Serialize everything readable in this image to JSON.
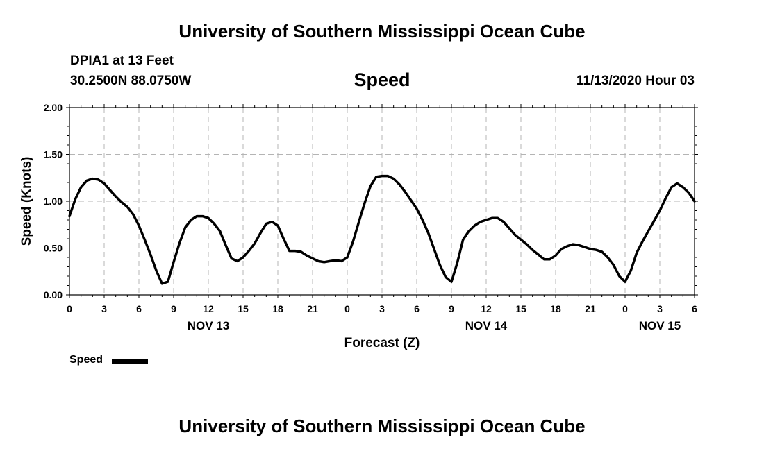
{
  "header": {
    "title": "University of Southern Mississippi Ocean Cube",
    "station": "DPIA1 at 13 Feet",
    "coordinates": "30.2500N 88.0750W",
    "chart_title": "Speed",
    "timestamp": "11/13/2020 Hour 03"
  },
  "footer": {
    "title": "University of Southern Mississippi Ocean Cube"
  },
  "legend": {
    "label": "Speed",
    "color": "#000000"
  },
  "chart_data": {
    "type": "line",
    "title": "Speed",
    "xlabel": "Forecast (Z)",
    "ylabel": "Speed (Knots)",
    "ylim": [
      0,
      2
    ],
    "xlim": [
      0,
      54
    ],
    "x_unit": "forecast hour",
    "y_ticks": [
      "0.00",
      "0.50",
      "1.00",
      "1.50",
      "2.00"
    ],
    "x_ticks": [
      {
        "x": 0,
        "label": "0"
      },
      {
        "x": 3,
        "label": "3"
      },
      {
        "x": 6,
        "label": "6"
      },
      {
        "x": 9,
        "label": "9"
      },
      {
        "x": 12,
        "label": "12"
      },
      {
        "x": 15,
        "label": "15"
      },
      {
        "x": 18,
        "label": "18"
      },
      {
        "x": 21,
        "label": "21"
      },
      {
        "x": 24,
        "label": "0"
      },
      {
        "x": 27,
        "label": "3"
      },
      {
        "x": 30,
        "label": "6"
      },
      {
        "x": 33,
        "label": "9"
      },
      {
        "x": 36,
        "label": "12"
      },
      {
        "x": 39,
        "label": "15"
      },
      {
        "x": 42,
        "label": "18"
      },
      {
        "x": 45,
        "label": "21"
      },
      {
        "x": 48,
        "label": "0"
      },
      {
        "x": 51,
        "label": "3"
      },
      {
        "x": 54,
        "label": "6"
      }
    ],
    "date_labels": [
      {
        "x": 12,
        "label": "NOV 13"
      },
      {
        "x": 36,
        "label": "NOV 14"
      },
      {
        "x": 51,
        "label": "NOV 15"
      }
    ],
    "grid": true,
    "series": [
      {
        "name": "Speed",
        "color": "#000000",
        "x": [
          0,
          0.5,
          1,
          1.5,
          2,
          2.5,
          3,
          3.5,
          4,
          4.5,
          5,
          5.5,
          6,
          6.5,
          7,
          7.5,
          8,
          8.5,
          9,
          9.5,
          10,
          10.5,
          11,
          11.5,
          12,
          12.5,
          13,
          13.5,
          14,
          14.5,
          15,
          15.5,
          16,
          16.5,
          17,
          17.5,
          18,
          18.5,
          19,
          19.5,
          20,
          20.5,
          21,
          21.5,
          22,
          22.5,
          23,
          23.5,
          24,
          24.5,
          25,
          25.5,
          26,
          26.5,
          27,
          27.5,
          28,
          28.5,
          29,
          29.5,
          30,
          30.5,
          31,
          31.5,
          32,
          32.5,
          33,
          33.5,
          34,
          34.5,
          35,
          35.5,
          36,
          36.5,
          37,
          37.5,
          38,
          38.5,
          39,
          39.5,
          40,
          40.5,
          41,
          41.5,
          42,
          42.5,
          43,
          43.5,
          44,
          44.5,
          45,
          45.5,
          46,
          46.5,
          47,
          47.5,
          48,
          48.5,
          49,
          49.5,
          50,
          50.5,
          51,
          51.5,
          52,
          52.5,
          53,
          53.5,
          54
        ],
        "values": [
          0.84,
          1.02,
          1.15,
          1.22,
          1.24,
          1.23,
          1.19,
          1.12,
          1.05,
          0.99,
          0.94,
          0.86,
          0.74,
          0.59,
          0.43,
          0.26,
          0.12,
          0.14,
          0.35,
          0.55,
          0.72,
          0.8,
          0.84,
          0.84,
          0.82,
          0.76,
          0.68,
          0.53,
          0.39,
          0.36,
          0.4,
          0.47,
          0.55,
          0.66,
          0.76,
          0.78,
          0.74,
          0.6,
          0.47,
          0.47,
          0.46,
          0.42,
          0.39,
          0.36,
          0.35,
          0.36,
          0.37,
          0.36,
          0.4,
          0.57,
          0.78,
          0.98,
          1.16,
          1.26,
          1.27,
          1.27,
          1.24,
          1.18,
          1.1,
          1.01,
          0.92,
          0.8,
          0.66,
          0.49,
          0.32,
          0.19,
          0.14,
          0.34,
          0.59,
          0.68,
          0.74,
          0.78,
          0.8,
          0.82,
          0.82,
          0.78,
          0.71,
          0.64,
          0.59,
          0.54,
          0.48,
          0.43,
          0.38,
          0.38,
          0.42,
          0.49,
          0.52,
          0.54,
          0.53,
          0.51,
          0.49,
          0.48,
          0.46,
          0.4,
          0.32,
          0.2,
          0.14,
          0.26,
          0.45,
          0.57,
          0.68,
          0.79,
          0.9,
          1.03,
          1.15,
          1.19,
          1.15,
          1.09,
          1.0
        ]
      }
    ]
  }
}
